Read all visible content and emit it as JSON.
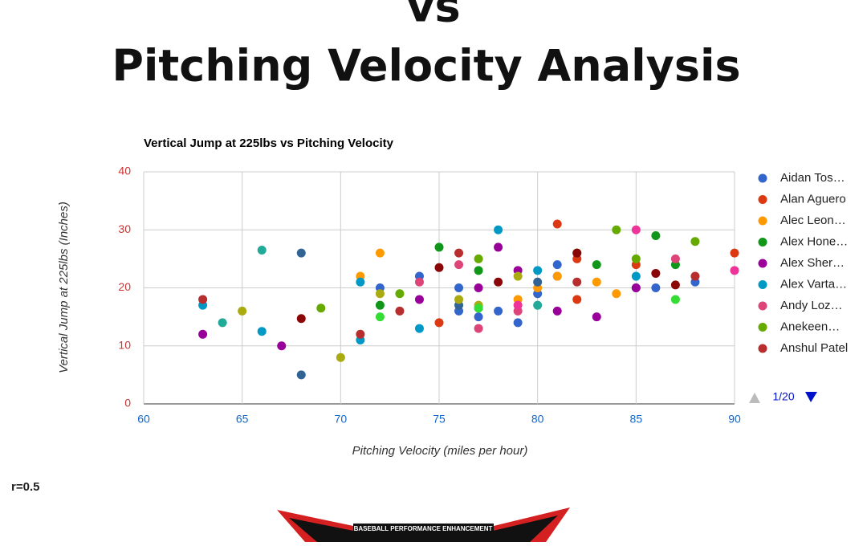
{
  "header": {
    "title_line1": "vs",
    "title_line2": "Pitching Velocity Analysis"
  },
  "chart_data": {
    "type": "scatter",
    "title": "Vertical Jump at 225lbs vs Pitching Velocity",
    "x_label": "Pitching Velocity (miles per hour)",
    "y_label": "Vertical Jump at 225lbs (Inches)",
    "xlim": [
      60,
      90
    ],
    "ylim": [
      0,
      40
    ],
    "xticks": [
      60,
      65,
      70,
      75,
      80,
      85,
      90
    ],
    "yticks": [
      0,
      10,
      20,
      30,
      40
    ],
    "grid": true,
    "legend": "right",
    "legend_page": "1/20",
    "series": [
      {
        "name": "Aidan Tos…",
        "color": "#3366cc",
        "x": [
          72,
          74,
          76,
          76,
          77,
          78,
          79,
          80,
          81,
          81,
          85,
          86,
          88
        ],
        "values": [
          20,
          22,
          20,
          16,
          15,
          16,
          14,
          19,
          24,
          22,
          20,
          20,
          21
        ]
      },
      {
        "name": "Alan Aguero",
        "color": "#dc3912",
        "x": [
          81,
          82,
          85,
          90,
          82,
          75
        ],
        "values": [
          31,
          25,
          24,
          26,
          18,
          14
        ]
      },
      {
        "name": "Alec Leon…",
        "color": "#ff9900",
        "x": [
          71,
          72,
          79,
          80,
          83,
          81,
          84
        ],
        "values": [
          22,
          26,
          18,
          20,
          21,
          22,
          19
        ]
      },
      {
        "name": "Alex Hone…",
        "color": "#109618",
        "x": [
          75,
          77,
          82,
          83,
          86,
          87,
          72
        ],
        "values": [
          27,
          23,
          26,
          24,
          29,
          24,
          17
        ]
      },
      {
        "name": "Alex Sher…",
        "color": "#990099",
        "x": [
          63,
          67,
          74,
          78,
          79,
          81,
          83,
          85,
          77
        ],
        "values": [
          12,
          10,
          18,
          27,
          23,
          16,
          15,
          20,
          20
        ]
      },
      {
        "name": "Alex Varta…",
        "color": "#0099c6",
        "x": [
          63,
          71,
          74,
          78,
          80,
          85,
          66,
          71
        ],
        "values": [
          17,
          21,
          13,
          30,
          23,
          22,
          12.5,
          11
        ]
      },
      {
        "name": "Andy Loz…",
        "color": "#dd4477",
        "x": [
          74,
          76,
          77,
          87,
          79
        ],
        "values": [
          21,
          24,
          13,
          25,
          16
        ]
      },
      {
        "name": "Anekeen…",
        "color": "#66aa00",
        "x": [
          69,
          77,
          84,
          85,
          88,
          73
        ],
        "values": [
          16.5,
          25,
          30,
          25,
          28,
          19
        ]
      },
      {
        "name": "Anshul Patel",
        "color": "#b82e2e",
        "x": [
          63,
          71,
          73,
          76,
          82,
          88
        ],
        "values": [
          18,
          12,
          16,
          26,
          21,
          22
        ]
      },
      {
        "color": "#316395",
        "x": [
          68,
          68,
          80,
          76
        ],
        "values": [
          26,
          5,
          21,
          17
        ]
      },
      {
        "color": "#22aa99",
        "x": [
          66,
          64,
          77,
          80
        ],
        "values": [
          26.5,
          14,
          16.5,
          17
        ]
      },
      {
        "color": "#aaaa11",
        "x": [
          65,
          70,
          72,
          77,
          79,
          76
        ],
        "values": [
          16,
          8,
          19,
          17,
          22,
          18
        ]
      },
      {
        "color": "#8b0707",
        "x": [
          68,
          75,
          78,
          82,
          86,
          87
        ],
        "values": [
          14.7,
          23.5,
          21,
          26,
          22.5,
          20.5
        ]
      },
      {
        "color": "#33dd33",
        "x": [
          87,
          72,
          77
        ],
        "values": [
          18,
          15,
          16.5
        ]
      },
      {
        "color": "#ee3399",
        "x": [
          90,
          85,
          79
        ],
        "values": [
          23,
          30,
          17
        ]
      }
    ]
  },
  "footer": {
    "stat": "r=0.5",
    "logo_text": "BASEBALL PERFORMANCE ENHANCEMENT"
  }
}
